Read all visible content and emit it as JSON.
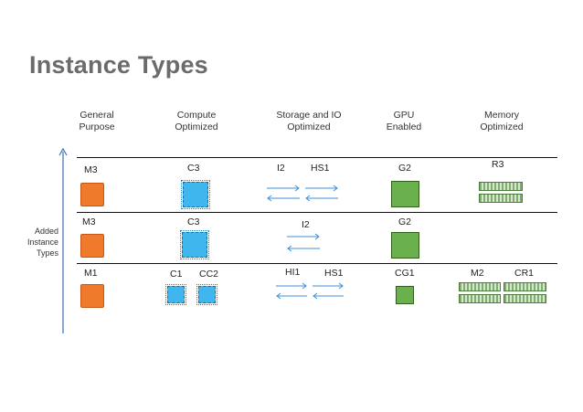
{
  "title": "Instance Types",
  "side_label": [
    "Added",
    "Instance",
    "Types"
  ],
  "columns": [
    {
      "line1": "General",
      "line2": "Purpose"
    },
    {
      "line1": "Compute",
      "line2": "Optimized"
    },
    {
      "line1": "Storage and IO",
      "line2": "Optimized"
    },
    {
      "line1": "GPU",
      "line2": "Enabled"
    },
    {
      "line1": "Memory",
      "line2": "Optimized"
    }
  ],
  "rows": [
    {
      "general": "M3",
      "compute": "C3",
      "storage": [
        "I2",
        "HS1"
      ],
      "gpu": "G2",
      "memory": [
        "R3"
      ]
    },
    {
      "general": "M3",
      "compute": "C3",
      "storage": [
        "I2"
      ],
      "gpu": "G2",
      "memory": []
    },
    {
      "general": "M1",
      "compute": [
        "C1",
        "CC2"
      ],
      "storage": [
        "HI1",
        "HS1"
      ],
      "gpu": "CG1",
      "memory": [
        "M2",
        "CR1"
      ]
    }
  ],
  "colors": {
    "general": "#f07a2c",
    "compute": "#3fb6ee",
    "gpu": "#6ab04c",
    "memory": "#7fae6e",
    "arrows": "#3d8fd8",
    "title": "#6b6b6b"
  },
  "icons": {
    "general": "orange-square-icon",
    "compute": "chip-icon",
    "storage": "double-arrow-icon",
    "gpu": "green-square-icon",
    "memory": "memory-module-icon",
    "axis": "up-arrow-icon"
  }
}
